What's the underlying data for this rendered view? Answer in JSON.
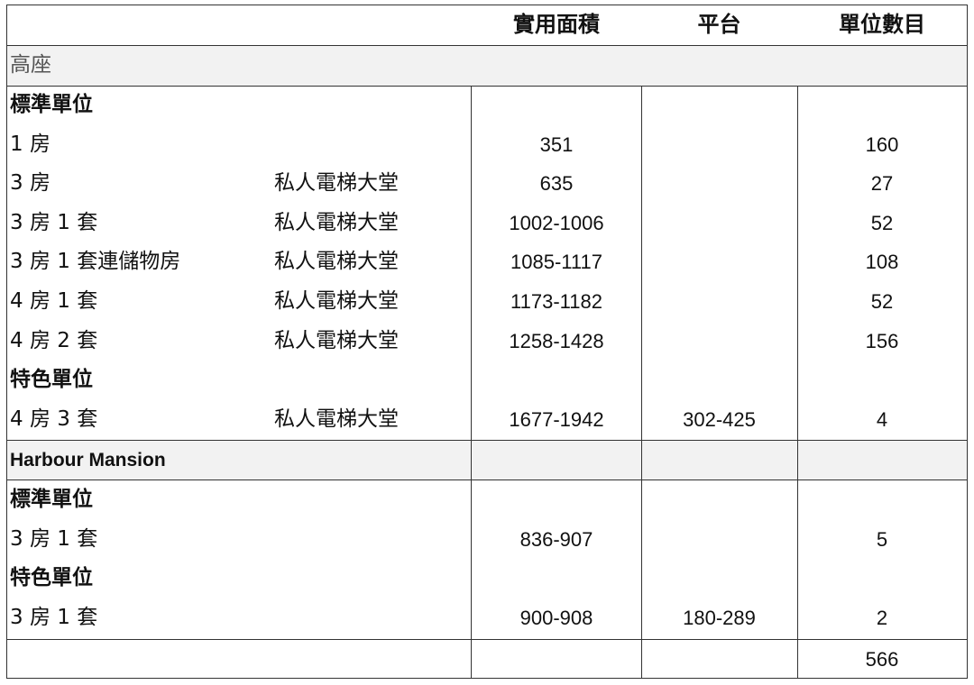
{
  "header": {
    "col3": "實用面積",
    "col4": "平台",
    "col5": "單位數目"
  },
  "colors": {
    "section_background": "#f2f2f2",
    "border": "#333333",
    "section_text": "#555555"
  },
  "sections": [
    {
      "title": "高座",
      "groups": [
        {
          "title": "標準單位",
          "rows": [
            {
              "type": "1 房",
              "lobby": "",
              "area": "351",
              "terrace": "",
              "units": "160"
            },
            {
              "type": "3 房",
              "lobby": "私人電梯大堂",
              "area": "635",
              "terrace": "",
              "units": "27"
            },
            {
              "type": "3 房 1 套",
              "lobby": "私人電梯大堂",
              "area": "1002-1006",
              "terrace": "",
              "units": "52"
            },
            {
              "type": "3 房 1 套連儲物房",
              "lobby": "私人電梯大堂",
              "area": "1085-1117",
              "terrace": "",
              "units": "108"
            },
            {
              "type": "4 房 1 套",
              "lobby": "私人電梯大堂",
              "area": "1173-1182",
              "terrace": "",
              "units": "52"
            },
            {
              "type": "4 房 2 套",
              "lobby": "私人電梯大堂",
              "area": "1258-1428",
              "terrace": "",
              "units": "156"
            }
          ]
        },
        {
          "title": "特色單位",
          "rows": [
            {
              "type": "4 房 3 套",
              "lobby": "私人電梯大堂",
              "area": "1677-1942",
              "terrace": "302-425",
              "units": "4"
            }
          ]
        }
      ]
    },
    {
      "title": "Harbour Mansion",
      "groups": [
        {
          "title": "標準單位",
          "rows": [
            {
              "type": "3 房 1 套",
              "lobby": "",
              "area": "836-907",
              "terrace": "",
              "units": "5"
            }
          ]
        },
        {
          "title": "特色單位",
          "rows": [
            {
              "type": "3 房 1 套",
              "lobby": "",
              "area": "900-908",
              "terrace": "180-289",
              "units": "2"
            }
          ]
        }
      ]
    }
  ],
  "total": {
    "units": "566"
  }
}
